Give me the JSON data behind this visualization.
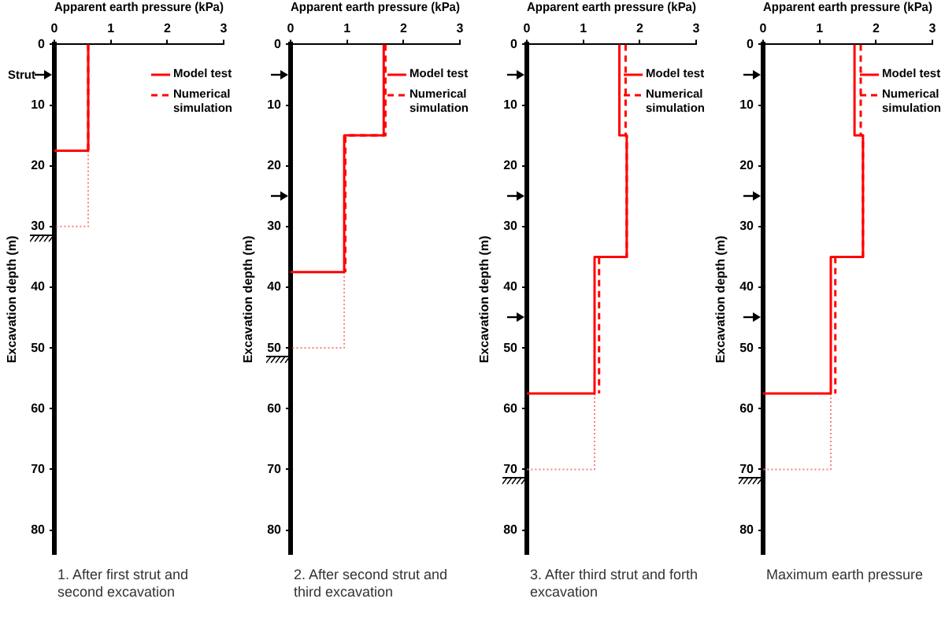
{
  "chart_data": [
    {
      "type": "line",
      "xlabel": "Apparent earth pressure (kPa)",
      "ylabel": "Excavation depth (m)",
      "xlim": [
        0,
        3
      ],
      "xticks": [
        0,
        1,
        2,
        3
      ],
      "ylim": [
        84,
        0
      ],
      "yticks": [
        0,
        10,
        20,
        30,
        40,
        50,
        60,
        70,
        80
      ],
      "grid": false,
      "legend": "top right",
      "annotations": [
        "1. After first strut and second excavation",
        "Strut"
      ],
      "series": [
        {
          "name": "Model test",
          "color": "#ff0000",
          "line_style": "solid",
          "x": [
            0.6,
            0.6,
            0
          ],
          "values": [
            0,
            17.5,
            17.5
          ]
        },
        {
          "name": "Numerical simulation",
          "color": "#ff0000",
          "line_style": "dashed",
          "x": [
            0.6,
            0.6
          ],
          "values": [
            0,
            17.5
          ]
        },
        {
          "color": "#ff7f7f",
          "line_style": "dotted",
          "x": [
            0.6,
            0.6,
            0
          ],
          "values": [
            17.5,
            30,
            30
          ]
        }
      ]
    },
    {
      "type": "line",
      "xlabel": "Apparent earth pressure (kPa)",
      "ylabel": "Excavation depth (m)",
      "xlim": [
        0,
        3
      ],
      "xticks": [
        0,
        1,
        2,
        3
      ],
      "ylim": [
        84,
        0
      ],
      "yticks": [
        0,
        10,
        20,
        30,
        40,
        50,
        60,
        70,
        80
      ],
      "grid": false,
      "legend": "top right",
      "annotations": [
        "2. After second strut and third excavation"
      ],
      "series": [
        {
          "name": "Model test",
          "color": "#ff0000",
          "line_style": "solid",
          "x": [
            1.65,
            1.65,
            0.95,
            0.95,
            0
          ],
          "values": [
            0,
            15,
            15,
            37.5,
            37.5
          ]
        },
        {
          "name": "Numerical simulation",
          "color": "#ff0000",
          "line_style": "dashed",
          "x": [
            1.68,
            1.68,
            0.97,
            0.97
          ],
          "values": [
            0,
            15,
            15,
            37.5
          ]
        },
        {
          "color": "#ff7f7f",
          "line_style": "dotted",
          "x": [
            0.95,
            0.95,
            0
          ],
          "values": [
            37.5,
            50,
            50
          ]
        }
      ]
    },
    {
      "type": "line",
      "xlabel": "Apparent earth pressure (kPa)",
      "ylabel": "Excavation depth (m)",
      "xlim": [
        0,
        3
      ],
      "xticks": [
        0,
        1,
        2,
        3
      ],
      "ylim": [
        84,
        0
      ],
      "yticks": [
        0,
        10,
        20,
        30,
        40,
        50,
        60,
        70,
        80
      ],
      "grid": false,
      "legend": "top right",
      "annotations": [
        "3. After third strut and forth excavation"
      ],
      "series": [
        {
          "name": "Model test",
          "color": "#ff0000",
          "line_style": "solid",
          "x": [
            1.64,
            1.64,
            1.77,
            1.77,
            1.2,
            1.2,
            0
          ],
          "values": [
            0,
            15,
            15,
            35,
            35,
            57.5,
            57.5
          ]
        },
        {
          "name": "Numerical simulation",
          "color": "#ff0000",
          "line_style": "dashed",
          "x": [
            1.75,
            1.75,
            1.77,
            1.77,
            1.28,
            1.28
          ],
          "values": [
            0,
            15,
            15,
            35,
            35,
            57.5
          ]
        },
        {
          "color": "#ff7f7f",
          "line_style": "dotted",
          "x": [
            1.2,
            1.2,
            0
          ],
          "values": [
            57.5,
            70,
            70
          ]
        }
      ]
    },
    {
      "type": "line",
      "xlabel": "Apparent earth pressure (kPa)",
      "ylabel": "Excavation depth (m)",
      "xlim": [
        0,
        3
      ],
      "xticks": [
        0,
        1,
        2,
        3
      ],
      "ylim": [
        84,
        0
      ],
      "yticks": [
        0,
        10,
        20,
        30,
        40,
        50,
        60,
        70,
        80
      ],
      "grid": false,
      "legend": "top right",
      "annotations": [
        "Maximum earth pressure"
      ],
      "series": [
        {
          "name": "Model test",
          "color": "#ff0000",
          "line_style": "solid",
          "x": [
            1.62,
            1.62,
            1.77,
            1.77,
            1.2,
            1.2,
            0
          ],
          "values": [
            0,
            15,
            15,
            35,
            35,
            57.5,
            57.5
          ]
        },
        {
          "name": "Numerical simulation",
          "color": "#ff0000",
          "line_style": "dashed",
          "x": [
            1.73,
            1.73,
            1.77,
            1.77,
            1.28,
            1.28
          ],
          "values": [
            0,
            15,
            15,
            35,
            35,
            57.5
          ]
        },
        {
          "color": "#ff7f7f",
          "line_style": "dotted",
          "x": [
            1.2,
            1.2,
            0
          ],
          "values": [
            57.5,
            70,
            70
          ]
        }
      ]
    }
  ]
}
